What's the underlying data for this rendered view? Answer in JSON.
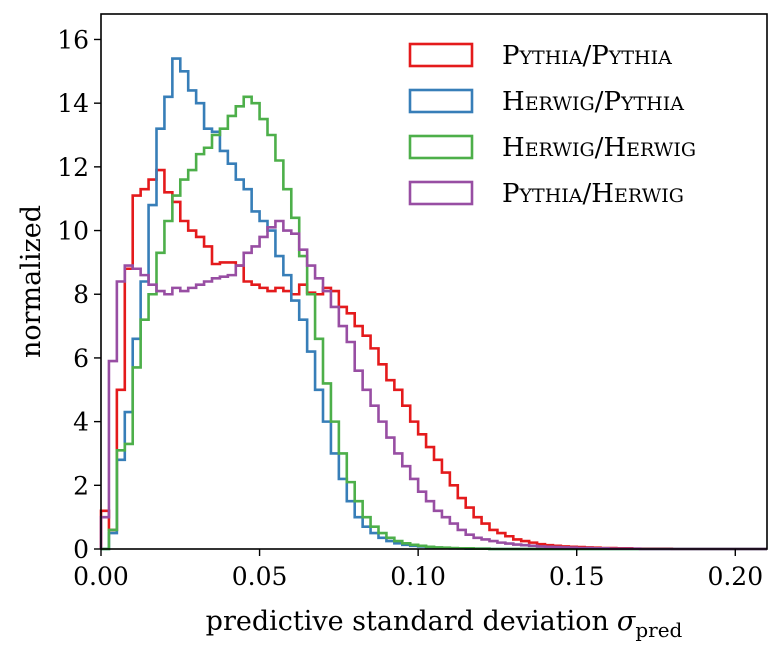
{
  "chart_data": {
    "type": "histogram-step",
    "title": "",
    "xlabel": "predictive standard deviation",
    "xlabel_symbol": "σ",
    "xlabel_subscript": "pred",
    "ylabel": "normalized",
    "xlim": [
      0.0,
      0.21
    ],
    "ylim": [
      0,
      16.8
    ],
    "xticks": [
      0.0,
      0.05,
      0.1,
      0.15,
      0.2
    ],
    "xtick_labels": [
      "0.00",
      "0.05",
      "0.10",
      "0.15",
      "0.20"
    ],
    "yticks": [
      0,
      2,
      4,
      6,
      8,
      10,
      12,
      14,
      16
    ],
    "ytick_labels": [
      "0",
      "2",
      "4",
      "6",
      "8",
      "10",
      "12",
      "14",
      "16"
    ],
    "legend_position": "top-right",
    "bin_width": 0.0025,
    "bin_start": 0.0,
    "series": [
      {
        "name": "Pythia/Pythia",
        "legend_parts": [
          [
            "P",
            "ythia"
          ],
          [
            "/"
          ],
          [
            "P",
            "ythia"
          ]
        ],
        "color": "#e41a1c",
        "values": [
          1.2,
          0.6,
          5.0,
          8.8,
          11.1,
          11.3,
          11.6,
          11.9,
          11.2,
          10.9,
          10.3,
          10.0,
          9.8,
          9.5,
          8.95,
          9.0,
          9.0,
          8.9,
          8.4,
          8.3,
          8.2,
          8.1,
          8.2,
          8.1,
          8.0,
          8.3,
          8.05,
          8.0,
          8.2,
          8.1,
          7.6,
          7.4,
          7.0,
          6.7,
          6.3,
          5.8,
          5.3,
          5.0,
          4.5,
          4.0,
          3.6,
          3.2,
          2.8,
          2.4,
          2.0,
          1.6,
          1.3,
          1.0,
          0.8,
          0.6,
          0.5,
          0.4,
          0.3,
          0.25,
          0.2,
          0.15,
          0.12,
          0.1,
          0.08,
          0.07,
          0.06,
          0.05,
          0.04,
          0.03,
          0.03,
          0.02,
          0.02,
          0.01,
          0.01,
          0.01,
          0.01,
          0.01,
          0.0,
          0.0,
          0.0,
          0.0,
          0.0,
          0.0,
          0.0,
          0.0,
          0.0,
          0.0,
          0.0,
          0.0
        ]
      },
      {
        "name": "Herwig/Pythia",
        "legend_parts": [
          [
            "H",
            "erwig"
          ],
          [
            "/"
          ],
          [
            "P",
            "ythia"
          ]
        ],
        "color": "#377eb8",
        "values": [
          0.0,
          0.5,
          2.8,
          4.3,
          6.6,
          8.4,
          10.8,
          13.2,
          14.2,
          15.4,
          15.0,
          14.4,
          14.0,
          13.2,
          13.1,
          12.5,
          12.1,
          11.6,
          11.3,
          10.6,
          10.3,
          10.0,
          9.2,
          8.6,
          7.8,
          7.2,
          6.2,
          5.0,
          4.0,
          3.0,
          2.2,
          1.5,
          1.0,
          0.7,
          0.5,
          0.35,
          0.25,
          0.18,
          0.13,
          0.1,
          0.08,
          0.06,
          0.04,
          0.03,
          0.02,
          0.02,
          0.01,
          0.01,
          0.01,
          0.0,
          0.0,
          0.0,
          0.0,
          0.0,
          0.0,
          0.0,
          0.0,
          0.0,
          0.0,
          0.0,
          0.0,
          0.0,
          0.0,
          0.0,
          0.0,
          0.0,
          0.0,
          0.0,
          0.0,
          0.0,
          0.0,
          0.0,
          0.0,
          0.0,
          0.0,
          0.0,
          0.0,
          0.0,
          0.0,
          0.0,
          0.0,
          0.0,
          0.0,
          0.0
        ]
      },
      {
        "name": "Herwig/Herwig",
        "legend_parts": [
          [
            "H",
            "erwig"
          ],
          [
            "/"
          ],
          [
            "H",
            "erwig"
          ]
        ],
        "color": "#4daf4a",
        "values": [
          0.0,
          0.6,
          3.1,
          3.3,
          5.7,
          7.2,
          8.0,
          9.3,
          10.3,
          11.1,
          11.6,
          11.9,
          12.4,
          12.6,
          13.0,
          13.2,
          13.6,
          13.9,
          14.2,
          14.0,
          13.5,
          13.0,
          12.2,
          11.3,
          10.4,
          9.2,
          8.0,
          6.6,
          5.2,
          4.0,
          3.0,
          2.1,
          1.5,
          1.0,
          0.7,
          0.5,
          0.35,
          0.25,
          0.18,
          0.13,
          0.1,
          0.07,
          0.05,
          0.04,
          0.03,
          0.02,
          0.02,
          0.01,
          0.01,
          0.0,
          0.0,
          0.0,
          0.0,
          0.0,
          0.0,
          0.0,
          0.0,
          0.0,
          0.0,
          0.0,
          0.0,
          0.0,
          0.0,
          0.0,
          0.0,
          0.0,
          0.0,
          0.0,
          0.0,
          0.0,
          0.0,
          0.0,
          0.0,
          0.0,
          0.0,
          0.0,
          0.0,
          0.0,
          0.0,
          0.0,
          0.0,
          0.0,
          0.0,
          0.0
        ]
      },
      {
        "name": "Pythia/Herwig",
        "legend_parts": [
          [
            "P",
            "ythia"
          ],
          [
            "/"
          ],
          [
            "H",
            "erwig"
          ]
        ],
        "color": "#984ea3",
        "values": [
          1.0,
          5.9,
          8.4,
          8.9,
          8.8,
          8.6,
          8.3,
          8.1,
          8.0,
          8.2,
          8.1,
          8.2,
          8.3,
          8.4,
          8.5,
          8.55,
          8.6,
          8.9,
          9.3,
          9.5,
          9.8,
          10.1,
          10.3,
          10.0,
          9.9,
          9.4,
          8.9,
          8.5,
          8.1,
          7.6,
          7.0,
          6.5,
          5.6,
          5.0,
          4.5,
          4.0,
          3.5,
          3.0,
          2.6,
          2.2,
          1.8,
          1.5,
          1.2,
          1.0,
          0.8,
          0.6,
          0.45,
          0.35,
          0.3,
          0.25,
          0.2,
          0.17,
          0.14,
          0.12,
          0.1,
          0.08,
          0.07,
          0.06,
          0.05,
          0.04,
          0.03,
          0.03,
          0.02,
          0.02,
          0.01,
          0.01,
          0.01,
          0.01,
          0.0,
          0.0,
          0.0,
          0.0,
          0.0,
          0.0,
          0.0,
          0.0,
          0.0,
          0.0,
          0.0,
          0.0,
          0.0,
          0.0,
          0.0,
          0.0
        ]
      }
    ]
  }
}
